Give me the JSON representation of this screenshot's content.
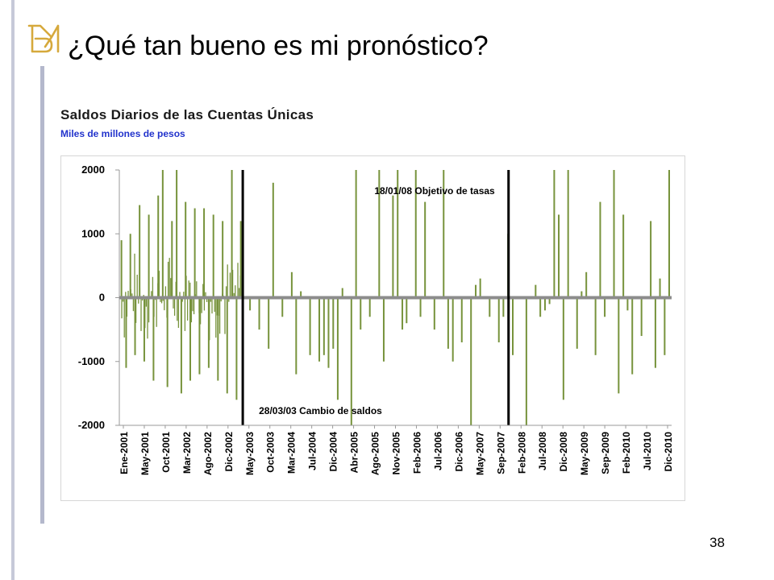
{
  "slide": {
    "title": "¿Qué tan bueno es mi pronóstico?",
    "page_number": "38",
    "accent_bar_color": "#b4b8cc",
    "logo_icon": "bm-monogram-icon",
    "logo_color": "#d6a93c"
  },
  "chart_data": {
    "type": "bar",
    "title": "Saldos Diarios de las Cuentas Únicas",
    "subtitle": "Miles de millones de pesos",
    "xlabel": "",
    "ylabel": "",
    "ylim": [
      -2000,
      2000
    ],
    "y_ticks": [
      2000,
      1000,
      0,
      -1000,
      -2000
    ],
    "y_tick_labels": [
      "2000",
      "1000",
      "0",
      "-1000",
      "-2000"
    ],
    "x_tick_labels": [
      "Ene-2001",
      "May-2001",
      "Oct-2001",
      "Mar-2002",
      "Ago-2002",
      "Dic-2002",
      "May-2003",
      "Oct-2003",
      "Mar-2004",
      "Jul-2004",
      "Dic-2004",
      "Abr-2005",
      "Ago-2005",
      "Nov-2005",
      "Feb-2006",
      "Jul-2006",
      "Dic-2006",
      "May-2007",
      "Sep-2007",
      "Feb-2008",
      "Jul-2008",
      "Dic-2008",
      "May-2009",
      "Sep-2009",
      "Feb-2010",
      "Jul-2010",
      "Dic-2010"
    ],
    "x_range": [
      "2001-01-01",
      "2010-12-31"
    ],
    "grid": false,
    "legend": false,
    "bar_color": "#77933c",
    "zero_line_color": "#8c8c8c",
    "series": [
      {
        "x": [
          "2001-01",
          "2001-02",
          "2001-03",
          "2001-04",
          "2001-05",
          "2001-06",
          "2001-07",
          "2001-08",
          "2001-09",
          "2001-10",
          "2001-11",
          "2001-12",
          "2002-01",
          "2002-02",
          "2002-03",
          "2002-04",
          "2002-05",
          "2002-06",
          "2002-07",
          "2002-08",
          "2002-09",
          "2002-10",
          "2002-11",
          "2002-12",
          "2003-01",
          "2003-02",
          "2003-03",
          "2003-05",
          "2003-07",
          "2003-09",
          "2003-10",
          "2003-12",
          "2004-02",
          "2004-03",
          "2004-04",
          "2004-06",
          "2004-08",
          "2004-09",
          "2004-10",
          "2004-11",
          "2004-12",
          "2005-01",
          "2005-03",
          "2005-04",
          "2005-05",
          "2005-07",
          "2005-09",
          "2005-10",
          "2005-12",
          "2006-01",
          "2006-02",
          "2006-03",
          "2006-05",
          "2006-06",
          "2006-07",
          "2006-09",
          "2006-11",
          "2006-12",
          "2007-01",
          "2007-03",
          "2007-05",
          "2007-06",
          "2007-07",
          "2007-09",
          "2007-11",
          "2007-12",
          "2008-01",
          "2008-02",
          "2008-05",
          "2008-07",
          "2008-08",
          "2008-09",
          "2008-10",
          "2008-11",
          "2008-12",
          "2009-01",
          "2009-02",
          "2009-04",
          "2009-05",
          "2009-06",
          "2009-08",
          "2009-09",
          "2009-10",
          "2009-12",
          "2010-01",
          "2010-02",
          "2010-03",
          "2010-04",
          "2010-06",
          "2010-08",
          "2010-09",
          "2010-10",
          "2010-11",
          "2010-12"
        ],
        "y": [
          900,
          -1100,
          1000,
          -900,
          1450,
          -1000,
          1300,
          -1300,
          1600,
          2000,
          -1400,
          1200,
          2000,
          -1500,
          1500,
          -1300,
          1400,
          -1200,
          1400,
          -1100,
          1300,
          -1300,
          1200,
          -1500,
          2000,
          -1600,
          1200,
          -200,
          -500,
          -800,
          1800,
          -300,
          400,
          -1200,
          100,
          -900,
          -1000,
          -900,
          -1100,
          -800,
          -1600,
          150,
          -2000,
          2000,
          -500,
          -300,
          2000,
          -1000,
          1600,
          2000,
          -500,
          -400,
          2000,
          -300,
          1500,
          -500,
          2000,
          -800,
          -1000,
          -700,
          -2000,
          200,
          300,
          -300,
          -700,
          -300,
          1000,
          -900,
          -2000,
          200,
          -300,
          -200,
          -100,
          2000,
          1300,
          -1600,
          2000,
          -800,
          100,
          400,
          -900,
          1500,
          -300,
          2000,
          -1500,
          1300,
          -200,
          -1200,
          -600,
          1200,
          -1100,
          300,
          -900,
          2000
        ]
      }
    ],
    "vertical_markers": [
      {
        "date": "2003-03-28",
        "label": "28/03/03  Cambio de saldos"
      },
      {
        "date": "2008-01-18",
        "label": "18/01/08  Objetivo de tasas"
      }
    ]
  }
}
